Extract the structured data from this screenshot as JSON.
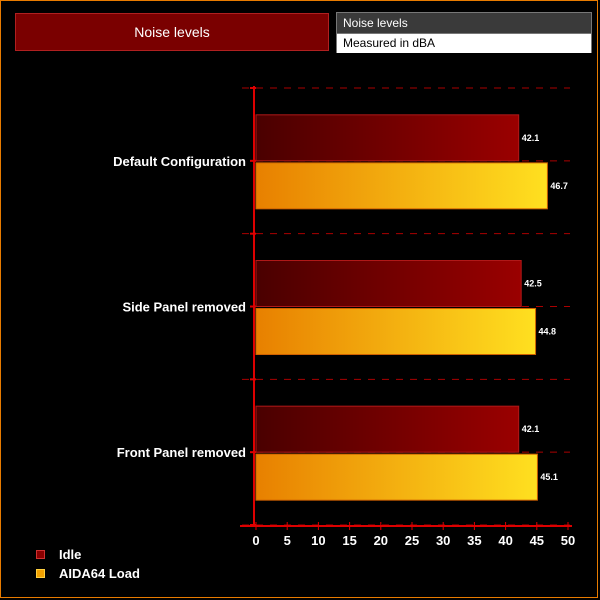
{
  "header": {
    "title": "Noise levels",
    "info_line1": "Noise levels",
    "info_line2": "Measured in dBA"
  },
  "colors": {
    "idle": "#8b0000",
    "idle_dark": "#4a0000",
    "load_light": "#ffe020",
    "load_dark": "#e88000",
    "axis": "#dd0000",
    "frame": "#e87b00"
  },
  "chart_data": {
    "type": "bar",
    "orientation": "horizontal",
    "categories": [
      "Default Configuration",
      "Side Panel removed",
      "Front Panel removed"
    ],
    "series": [
      {
        "name": "Idle",
        "values": [
          42.1,
          42.5,
          42.1
        ]
      },
      {
        "name": "AIDA64 Load",
        "values": [
          46.7,
          44.8,
          45.1
        ]
      }
    ],
    "xlim": [
      0,
      50
    ],
    "xticks": [
      0,
      5,
      10,
      15,
      20,
      25,
      30,
      35,
      40,
      45,
      50
    ],
    "grid": "dashed",
    "legend_position": "bottom-left"
  }
}
